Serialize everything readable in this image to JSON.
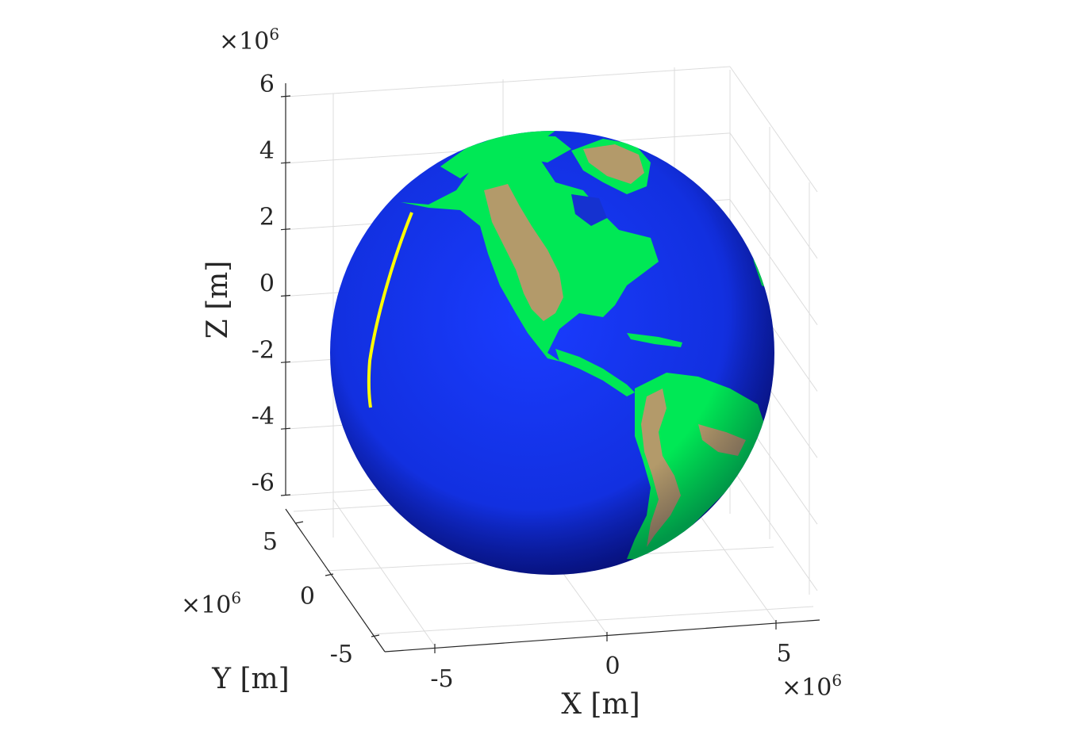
{
  "chart_data": {
    "type": "surface3d",
    "title": "",
    "xlabel": "X [m]",
    "ylabel": "Y [m]",
    "zlabel": "Z [m]",
    "x_ticks": [
      "-5",
      "0",
      "5"
    ],
    "y_ticks": [
      "-5",
      "0",
      "5"
    ],
    "z_ticks": [
      "-6",
      "-4",
      "-2",
      "0",
      "2",
      "4",
      "6"
    ],
    "x_exponent": "6",
    "y_exponent": "6",
    "z_exponent": "6",
    "exponent_prefix": "×10",
    "grid": true,
    "surface": "Earth globe (topographic colormap)",
    "series": [
      {
        "type": "line3d",
        "color": "#ffff00",
        "description": "ground track arc over the Pacific"
      }
    ],
    "colors": {
      "ocean_deep": "#0a1fb0",
      "ocean": "#1430f0",
      "lowland": "#00e855",
      "highland": "#b39a6a",
      "track": "#ffff00",
      "grid": "#dcdcdc",
      "axis": "#262626"
    }
  }
}
